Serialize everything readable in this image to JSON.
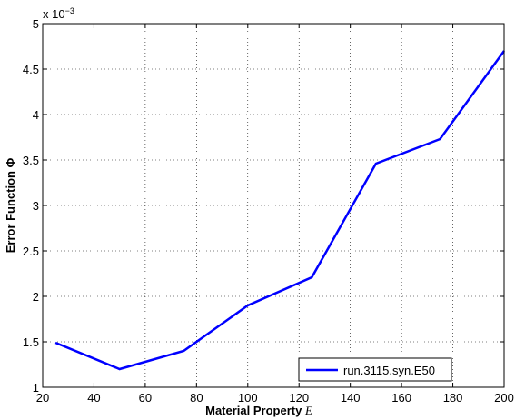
{
  "chart_data": {
    "type": "line",
    "xlabel": "Material Property ",
    "xlabel_symbol": "E",
    "ylabel": "Error Function Φ",
    "y_multiplier_base": "x 10",
    "y_multiplier_exp": "−3",
    "xlim": [
      20,
      200
    ],
    "ylim": [
      1,
      5
    ],
    "x_ticks": [
      20,
      40,
      60,
      80,
      100,
      120,
      140,
      160,
      180,
      200
    ],
    "y_ticks": [
      1,
      1.5,
      2,
      2.5,
      3,
      3.5,
      4,
      4.5,
      5
    ],
    "y_tick_labels": [
      "1",
      "1.5",
      "2",
      "2.5",
      "3",
      "3.5",
      "4",
      "4.5",
      "5"
    ],
    "grid": true,
    "legend_position": "bottom-right",
    "series": [
      {
        "name": "run.3115.syn.E50",
        "color": "#0000ff",
        "x": [
          25,
          50,
          75,
          100,
          125,
          150,
          175,
          200
        ],
        "y": [
          1.49,
          1.2,
          1.4,
          1.9,
          2.21,
          3.46,
          3.73,
          4.7
        ]
      }
    ]
  }
}
